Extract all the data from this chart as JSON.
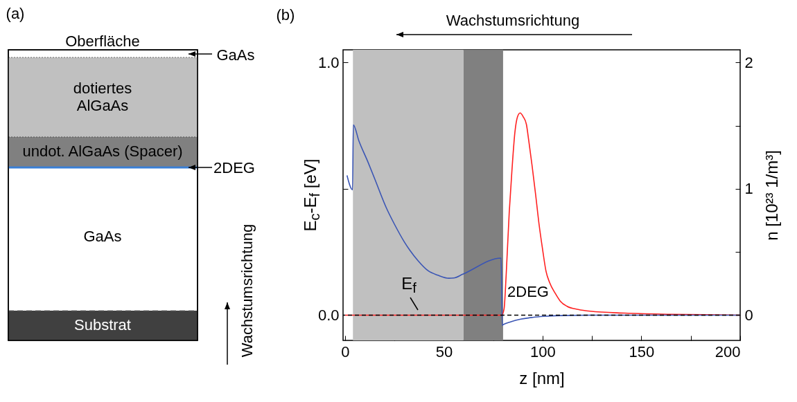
{
  "chart_data": [
    {
      "type": "other",
      "title": "(a)",
      "annotations": [
        "Oberfläche",
        "GaAs",
        "dotiertes AlGaAs",
        "undot. AlGaAs (Spacer)",
        "2DEG",
        "GaAs",
        "Substrat",
        "Wachstumsrichtung"
      ]
    },
    {
      "type": "line",
      "title": "(b)",
      "xlabel": "z [nm]",
      "ylabel": "E$_{c}$-E$_{f}$ [eV]",
      "y2label": "n [10²³ 1/m³]",
      "series": [
        {
          "color": "#3a55b4",
          "x": [
            1,
            3.8,
            4.2,
            7,
            11.6,
            15,
            21,
            25,
            30,
            32.7,
            37,
            42,
            47,
            52.6,
            55,
            59.6,
            79,
            79.6,
            79.8,
            84,
            88.9,
            95,
            100.5,
            112.4,
            130,
            200
          ],
          "values": [
            0.553,
            0.496,
            0.753,
            0.69,
            0.606,
            0.54,
            0.423,
            0.36,
            0.29,
            0.258,
            0.215,
            0.176,
            0.158,
            0.146,
            0.147,
            0.162,
            0.226,
            -0.041,
            -0.039,
            -0.026,
            -0.016,
            -0.009,
            -0.005,
            -0.001,
            0,
            0
          ]
        },
        {
          "color": "#ff2020",
          "axis": "y2",
          "x": [
            0,
            79.3,
            80.5,
            81.5,
            83.1,
            84.5,
            86,
            87.3,
            88.6,
            90.2,
            91.8,
            93,
            94.7,
            96.5,
            98.2,
            100,
            101.7,
            103.5,
            106.5,
            109,
            112.4,
            118,
            124.1,
            141.7,
            165,
            200
          ],
          "values": [
            0,
            0,
            0.05,
            0.3,
            0.81,
            1.15,
            1.45,
            1.57,
            1.6,
            1.57,
            1.51,
            1.38,
            1.18,
            0.95,
            0.72,
            0.52,
            0.35,
            0.26,
            0.17,
            0.11,
            0.07,
            0.045,
            0.031,
            0.016,
            0.007,
            0
          ]
        }
      ],
      "xlim": [
        -1,
        200
      ],
      "xticks": [
        0,
        {
          "value": 25,
          "label": null
        },
        50,
        {
          "value": 75,
          "label": null
        },
        100,
        {
          "value": 125,
          "label": null
        },
        150,
        {
          "value": 175,
          "label": null
        },
        200
      ],
      "ylim": [
        -0.1,
        1.05
      ],
      "yticks": [
        {
          "value": 0,
          "label": "0.0"
        },
        {
          "value": 0.5,
          "label": null
        },
        {
          "value": 1,
          "label": "1.0"
        }
      ],
      "y2lim": [
        -0.2,
        2.1
      ],
      "y2ticks": [
        0,
        {
          "value": 0.5,
          "label": null
        },
        1,
        {
          "value": 1.5,
          "label": null
        },
        2
      ],
      "bands": [
        {
          "axis": "x",
          "from": 4,
          "to": 60,
          "color": "#c0c0c0"
        },
        {
          "axis": "x",
          "from": 60,
          "to": 80,
          "color": "#808080"
        }
      ],
      "ref_lines": [
        {
          "axis": "y",
          "value": 0,
          "color": "#000000",
          "line_style": "dashed"
        }
      ],
      "annotations": [
        "Wachstumsrichtung",
        "E$_{f}$",
        "2DEG"
      ],
      "grid": false,
      "marker": "none"
    }
  ]
}
